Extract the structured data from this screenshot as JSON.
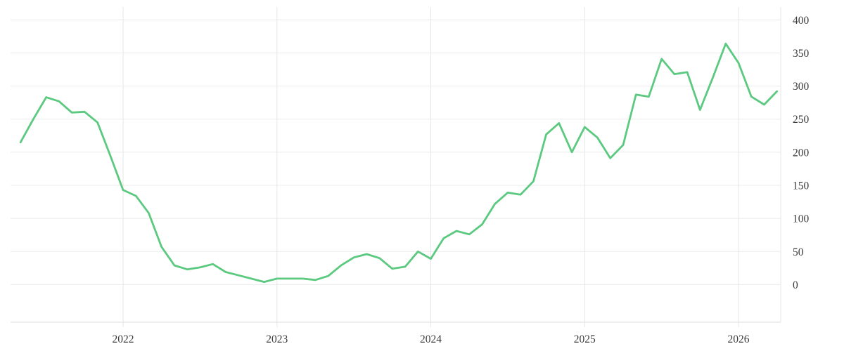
{
  "page": {
    "background": "#ffffff"
  },
  "chart_data": {
    "type": "line",
    "title": "",
    "xlabel": "",
    "ylabel": "",
    "grid": true,
    "legend": false,
    "y_axis_side": "right",
    "ylim": [
      0,
      400
    ],
    "y_ticks": [
      0,
      50,
      100,
      150,
      200,
      250,
      300,
      350,
      400
    ],
    "x_tick_labels": [
      "2022",
      "2023",
      "2024",
      "2025",
      "2026"
    ],
    "x_start": "2021-05",
    "x_end": "2026-04",
    "x_frequency": "monthly",
    "series": [
      {
        "name": "value",
        "color": "#5bc97f",
        "values": [
          215,
          250,
          283,
          277,
          260,
          261,
          245,
          195,
          143,
          134,
          108,
          57,
          29,
          23,
          26,
          31,
          19,
          14,
          9,
          4,
          9,
          9,
          9,
          7,
          13,
          29,
          41,
          46,
          40,
          24,
          27,
          50,
          39,
          70,
          81,
          76,
          91,
          122,
          139,
          136,
          156,
          227,
          244,
          200,
          238,
          222,
          191,
          211,
          287,
          284,
          341,
          318,
          321,
          264,
          313,
          364,
          335,
          284,
          272,
          292
        ]
      }
    ],
    "colors": {
      "line": "#5bc97f",
      "h_gridline": "#ebebeb",
      "v_gridline": "#e7e7e7",
      "axis_line": "#dcdcdc",
      "tick_text": "#3a3a3a"
    }
  }
}
